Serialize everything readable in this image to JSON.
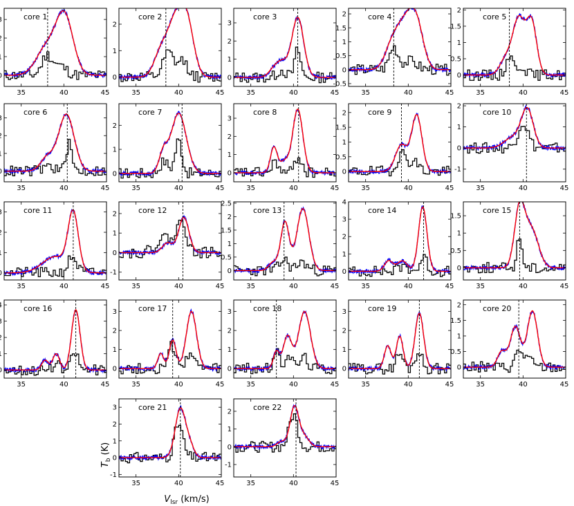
{
  "figure": {
    "xlabel_main": "V",
    "xlabel_sub": "lsr",
    "xlabel_unit": " (km/s)",
    "ylabel_main": "T",
    "ylabel_sub": "b",
    "ylabel_unit": " (K)"
  },
  "chart_data": {
    "type": "line",
    "description": "Grid of spectra per core: observed spectrum (blue), model fit (red), second-line spectrum (black histogram), dashed vertical line = systemic velocity",
    "xlim": [
      33,
      45
    ],
    "xticks": [
      35,
      40,
      45
    ],
    "series_colors": {
      "observed": "#0000ff",
      "fit": "#ff0000",
      "secondary": "#000000",
      "vline": "#000000"
    },
    "panels": [
      {
        "label": "core 1",
        "ylim": [
          -0.6,
          3.6
        ],
        "yticks": [
          0,
          1,
          2,
          3
        ],
        "vline": 38.1,
        "comps": [
          [
            38.0,
            1.5,
            1.2
          ],
          [
            40.1,
            3.1,
            1.0
          ]
        ],
        "sec": [
          [
            38.0,
            1.0,
            0.6
          ],
          [
            39.5,
            0.5,
            0.8
          ]
        ]
      },
      {
        "label": "core 2",
        "ylim": [
          -0.35,
          2.6
        ],
        "yticks": [
          0,
          1,
          2
        ],
        "vline": 38.5,
        "comps": [
          [
            37.9,
            0.9,
            0.8
          ],
          [
            39.6,
            2.0,
            0.9
          ],
          [
            41.0,
            1.9,
            0.8
          ]
        ],
        "sec": [
          [
            38.8,
            0.9,
            0.6
          ],
          [
            40.5,
            0.6,
            0.6
          ]
        ]
      },
      {
        "label": "core 3",
        "ylim": [
          -0.5,
          3.8
        ],
        "yticks": [
          0,
          1,
          2,
          3
        ],
        "vline": 40.5,
        "comps": [
          [
            37.7,
            0.45,
            0.6
          ],
          [
            38.7,
            0.75,
            0.6
          ],
          [
            40.5,
            3.3,
            0.7
          ]
        ],
        "sec": [
          [
            40.5,
            1.5,
            0.35
          ],
          [
            38.6,
            0.4,
            0.5
          ]
        ]
      },
      {
        "label": "core 4",
        "ylim": [
          -0.6,
          2.2
        ],
        "yticks": [
          -0.5,
          0.0,
          0.5,
          1.0,
          1.5,
          2.0
        ],
        "vline": 38.3,
        "comps": [
          [
            38.0,
            0.7,
            0.8
          ],
          [
            39.6,
            1.6,
            1.0
          ],
          [
            41.0,
            1.4,
            0.8
          ]
        ],
        "sec": [
          [
            38.3,
            0.8,
            0.5
          ],
          [
            40.2,
            0.3,
            0.8
          ]
        ]
      },
      {
        "label": "core 5",
        "ylim": [
          -0.35,
          2.05
        ],
        "yticks": [
          0.0,
          0.5,
          1.0,
          1.5,
          2.0
        ],
        "vline": 38.4,
        "comps": [
          [
            38.0,
            0.5,
            0.7
          ],
          [
            39.5,
            1.7,
            0.7
          ],
          [
            41.0,
            1.6,
            0.6
          ]
        ],
        "sec": [
          [
            38.4,
            0.6,
            0.4
          ],
          [
            39.8,
            0.3,
            0.5
          ]
        ]
      },
      {
        "label": "core 6",
        "ylim": [
          -0.6,
          3.8
        ],
        "yticks": [
          0,
          1,
          2,
          3
        ],
        "vline": 40.4,
        "comps": [
          [
            38.1,
            0.8,
            0.8
          ],
          [
            40.3,
            3.2,
            0.9
          ]
        ],
        "sec": [
          [
            40.6,
            1.5,
            0.35
          ],
          [
            38.2,
            0.3,
            0.6
          ]
        ]
      },
      {
        "label": "core 7",
        "ylim": [
          -0.35,
          2.9
        ],
        "yticks": [
          0,
          1,
          2
        ],
        "vline": 40.4,
        "comps": [
          [
            38.2,
            0.8,
            0.5
          ],
          [
            40.0,
            2.5,
            0.9
          ]
        ],
        "sec": [
          [
            40.0,
            1.4,
            0.4
          ],
          [
            38.3,
            0.5,
            0.5
          ]
        ]
      },
      {
        "label": "core 8",
        "ylim": [
          -0.5,
          3.8
        ],
        "yticks": [
          0,
          1,
          2,
          3
        ],
        "vline": 40.6,
        "comps": [
          [
            37.7,
            1.4,
            0.4
          ],
          [
            38.9,
            0.6,
            0.5
          ],
          [
            40.5,
            3.5,
            0.6
          ]
        ],
        "sec": [
          [
            37.9,
            0.7,
            0.3
          ],
          [
            40.6,
            0.9,
            0.4
          ]
        ]
      },
      {
        "label": "core 9",
        "ylim": [
          -0.35,
          2.3
        ],
        "yticks": [
          0.0,
          0.5,
          1.0,
          1.5,
          2.0
        ],
        "vline": 39.2,
        "comps": [
          [
            39.2,
            0.9,
            0.7
          ],
          [
            41.0,
            1.9,
            0.6
          ]
        ],
        "sec": [
          [
            39.3,
            0.6,
            0.6
          ],
          [
            40.8,
            0.3,
            0.5
          ]
        ]
      },
      {
        "label": "core 10",
        "ylim": [
          -1.6,
          2.1
        ],
        "yticks": [
          -1,
          0,
          1,
          2
        ],
        "vline": 40.4,
        "comps": [
          [
            38.8,
            0.5,
            1.0
          ],
          [
            40.5,
            1.8,
            0.7
          ]
        ],
        "sec": [
          [
            40.0,
            1.2,
            0.6
          ]
        ]
      },
      {
        "label": "core 11",
        "ylim": [
          -0.35,
          3.5
        ],
        "yticks": [
          0,
          1,
          2,
          3
        ],
        "vline": 41.1,
        "comps": [
          [
            39.0,
            0.8,
            1.5
          ],
          [
            41.1,
            2.8,
            0.6
          ]
        ],
        "sec": [
          [
            41.0,
            0.8,
            0.5
          ]
        ]
      },
      {
        "label": "core 12",
        "ylim": [
          -1.4,
          2.6
        ],
        "yticks": [
          -1,
          0,
          1,
          2
        ],
        "vline": 40.5,
        "comps": [
          [
            38.7,
            0.5,
            0.6
          ],
          [
            40.6,
            1.8,
            0.6
          ]
        ],
        "sec": [
          [
            40.4,
            1.6,
            0.5
          ],
          [
            38.5,
            0.8,
            1.0
          ]
        ]
      },
      {
        "label": "core 13",
        "ylim": [
          -0.35,
          2.55
        ],
        "yticks": [
          0.0,
          0.5,
          1.0,
          1.5,
          2.0,
          2.5
        ],
        "vline": 38.9,
        "comps": [
          [
            37.6,
            0.3,
            0.5
          ],
          [
            39.0,
            1.8,
            0.5
          ],
          [
            41.1,
            2.3,
            0.7
          ]
        ],
        "sec": [
          [
            38.9,
            0.4,
            0.5
          ],
          [
            41.0,
            0.3,
            0.6
          ]
        ]
      },
      {
        "label": "core 14",
        "ylim": [
          -0.5,
          4.0
        ],
        "yticks": [
          0,
          1,
          2,
          3,
          4
        ],
        "vline": 41.8,
        "comps": [
          [
            37.7,
            0.6,
            0.5
          ],
          [
            39.3,
            0.6,
            0.6
          ],
          [
            41.7,
            3.7,
            0.5
          ]
        ],
        "sec": [
          [
            41.8,
            0.8,
            0.4
          ],
          [
            39.5,
            0.3,
            0.6
          ]
        ]
      },
      {
        "label": "core 15",
        "ylim": [
          -0.35,
          1.9
        ],
        "yticks": [
          0.0,
          0.5,
          1.0,
          1.5
        ],
        "vline": 39.6,
        "comps": [
          [
            39.6,
            1.7,
            0.6
          ],
          [
            41.0,
            1.1,
            0.8
          ]
        ],
        "sec": [
          [
            39.6,
            0.9,
            0.3
          ]
        ]
      },
      {
        "label": "core 16",
        "ylim": [
          -0.5,
          4.3
        ],
        "yticks": [
          0,
          1,
          2,
          3,
          4
        ],
        "vline": 41.4,
        "comps": [
          [
            37.8,
            0.6,
            0.4
          ],
          [
            39.1,
            1.0,
            0.4
          ],
          [
            41.4,
            3.7,
            0.5
          ]
        ],
        "sec": [
          [
            41.3,
            1.1,
            0.4
          ],
          [
            39.1,
            0.3,
            0.4
          ]
        ]
      },
      {
        "label": "core 17",
        "ylim": [
          -0.5,
          3.6
        ],
        "yticks": [
          0,
          1,
          2,
          3
        ],
        "vline": 39.3,
        "comps": [
          [
            37.9,
            0.8,
            0.35
          ],
          [
            39.3,
            1.5,
            0.4
          ],
          [
            41.5,
            3.0,
            0.6
          ]
        ],
        "sec": [
          [
            39.2,
            1.2,
            0.4
          ],
          [
            41.3,
            0.8,
            0.5
          ]
        ]
      },
      {
        "label": "core 18",
        "ylim": [
          -0.5,
          3.6
        ],
        "yticks": [
          0,
          1,
          2,
          3
        ],
        "vline": 38.0,
        "comps": [
          [
            38.0,
            0.9,
            0.35
          ],
          [
            39.3,
            1.7,
            0.5
          ],
          [
            41.3,
            3.0,
            0.7
          ]
        ],
        "sec": [
          [
            38.0,
            0.9,
            0.3
          ],
          [
            39.4,
            0.8,
            0.4
          ],
          [
            41.2,
            0.6,
            0.5
          ]
        ]
      },
      {
        "label": "core 19",
        "ylim": [
          -0.5,
          3.6
        ],
        "yticks": [
          0,
          1,
          2,
          3
        ],
        "vline": 41.3,
        "comps": [
          [
            37.6,
            1.2,
            0.4
          ],
          [
            39.0,
            1.7,
            0.4
          ],
          [
            41.3,
            2.9,
            0.5
          ]
        ],
        "sec": [
          [
            39.0,
            0.8,
            0.4
          ],
          [
            41.2,
            0.9,
            0.4
          ]
        ]
      },
      {
        "label": "core 20",
        "ylim": [
          -0.35,
          2.15
        ],
        "yticks": [
          0.0,
          0.5,
          1.0,
          1.5,
          2.0
        ],
        "vline": 39.5,
        "comps": [
          [
            37.5,
            0.5,
            0.5
          ],
          [
            39.1,
            1.3,
            0.6
          ],
          [
            41.1,
            1.8,
            0.6
          ]
        ],
        "sec": [
          [
            39.5,
            0.5,
            0.4
          ],
          [
            40.5,
            0.3,
            0.5
          ]
        ]
      },
      {
        "label": "core 21",
        "ylim": [
          -1.15,
          3.5
        ],
        "yticks": [
          -1,
          0,
          1,
          2,
          3
        ],
        "vline": 40.2,
        "comps": [
          [
            40.2,
            2.9,
            0.6
          ],
          [
            41.3,
            0.7,
            0.5
          ]
        ],
        "sec": [
          [
            40.0,
            2.0,
            0.5
          ]
        ]
      },
      {
        "label": "core 22",
        "ylim": [
          -1.7,
          2.7
        ],
        "yticks": [
          -1,
          0,
          1,
          2
        ],
        "vline": 40.3,
        "comps": [
          [
            38.6,
            0.3,
            0.5
          ],
          [
            40.1,
            2.2,
            0.5
          ],
          [
            41.2,
            0.6,
            0.6
          ]
        ],
        "sec": [
          [
            40.0,
            1.8,
            0.5
          ]
        ]
      }
    ]
  }
}
